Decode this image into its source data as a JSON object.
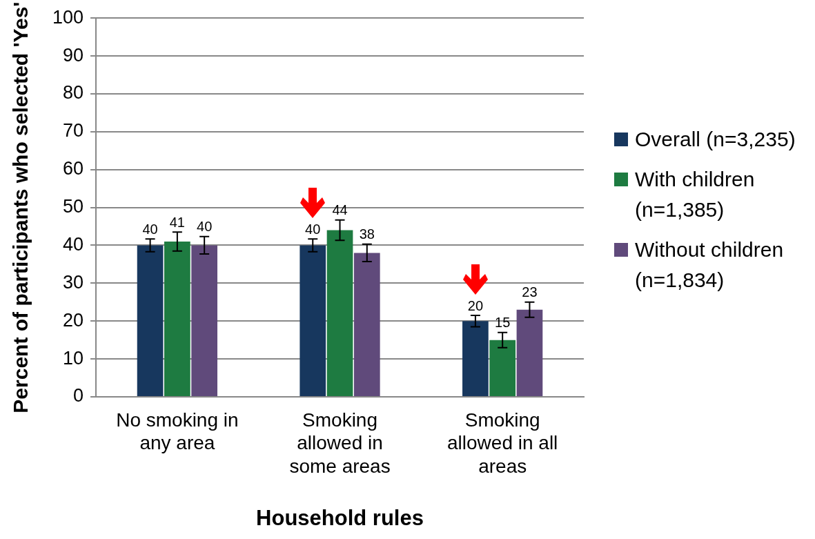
{
  "chart_data": {
    "type": "bar",
    "xlabel": "Household rules",
    "ylabel": "Percent of participants who selected 'Yes'",
    "categories": [
      "No smoking in any area",
      "Smoking allowed in some areas",
      "Smoking allowed in all areas"
    ],
    "series": [
      {
        "name": "Overall (n=3,235)",
        "color": "#17375e",
        "values": [
          40,
          40,
          20
        ],
        "errors": [
          1.7,
          1.7,
          1.5
        ]
      },
      {
        "name": "With children (n=1,385)",
        "color": "#1e7b41",
        "values": [
          41,
          44,
          15
        ],
        "errors": [
          2.5,
          2.7,
          2
        ]
      },
      {
        "name": "Without children (n=1,834)",
        "color": "#604a7b",
        "values": [
          40,
          38,
          23
        ],
        "errors": [
          2.3,
          2.3,
          2
        ]
      }
    ],
    "ylim": [
      0,
      100
    ],
    "yticks": [
      0,
      10,
      20,
      30,
      40,
      50,
      60,
      70,
      80,
      90,
      100
    ],
    "grid": "y",
    "legend": "right",
    "data_labels": true
  }
}
